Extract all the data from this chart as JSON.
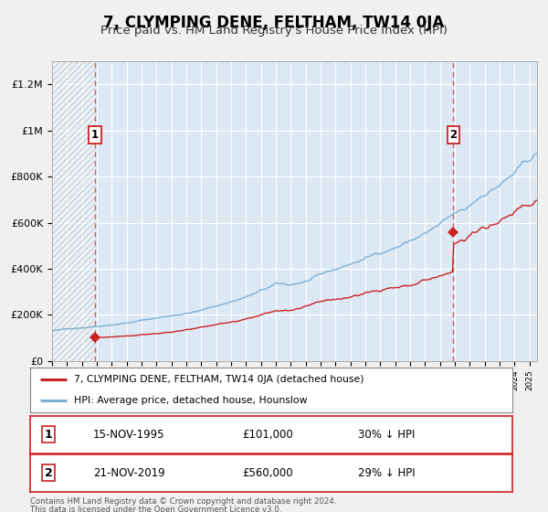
{
  "title": "7, CLYMPING DENE, FELTHAM, TW14 0JA",
  "subtitle": "Price paid vs. HM Land Registry's House Price Index (HPI)",
  "ylim": [
    0,
    1300000
  ],
  "xlim_start": 1993.0,
  "xlim_end": 2025.5,
  "yticks": [
    0,
    200000,
    400000,
    600000,
    800000,
    1000000,
    1200000
  ],
  "ytick_labels": [
    "£0",
    "£200K",
    "£400K",
    "£600K",
    "£800K",
    "£1M",
    "£1.2M"
  ],
  "background_color": "#f0f0f0",
  "plot_bg_color": "#dce9f5",
  "grid_color": "#ffffff",
  "hpi_color": "#7bafd4",
  "price_color": "#cc2222",
  "dashed_color": "#cc4444",
  "marker1_date": 1995.878,
  "marker1_value": 101000,
  "marker2_date": 2019.894,
  "marker2_value": 560000,
  "legend_label1": "7, CLYMPING DENE, FELTHAM, TW14 0JA (detached house)",
  "legend_label2": "HPI: Average price, detached house, Hounslow",
  "annot1_label": "1",
  "annot1_date_str": "15-NOV-1995",
  "annot1_price_str": "£101,000",
  "annot1_hpi_str": "30% ↓ HPI",
  "annot2_label": "2",
  "annot2_date_str": "21-NOV-2019",
  "annot2_price_str": "£560,000",
  "annot2_hpi_str": "29% ↓ HPI",
  "footer_text1": "Contains HM Land Registry data © Crown copyright and database right 2024.",
  "footer_text2": "This data is licensed under the Open Government Licence v3.0.",
  "title_fontsize": 12,
  "subtitle_fontsize": 9.5
}
